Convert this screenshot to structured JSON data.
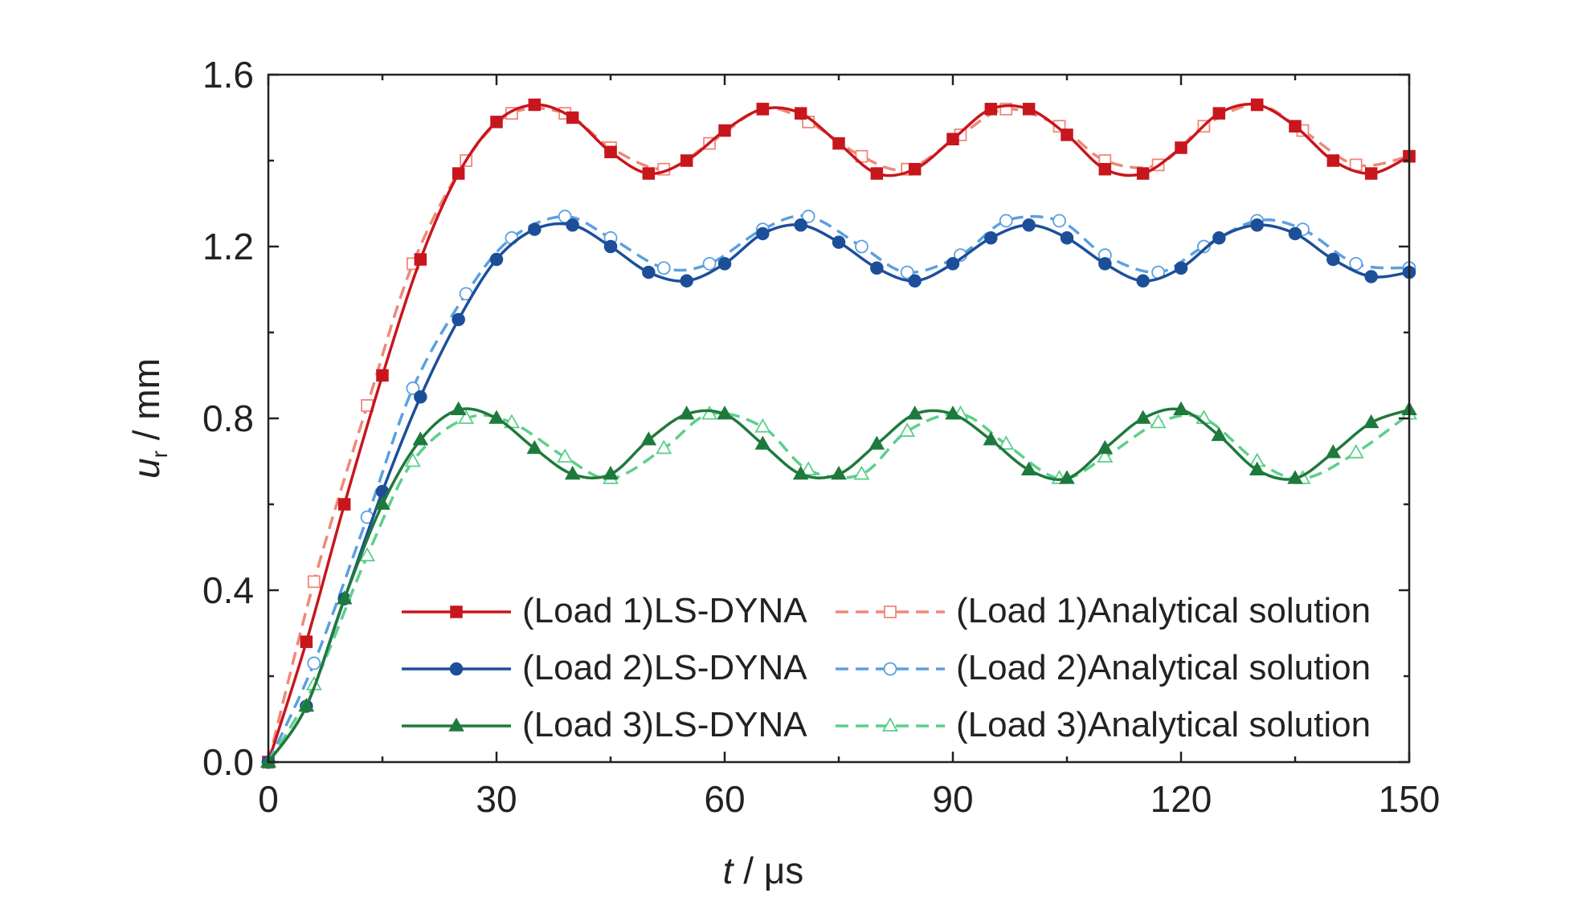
{
  "chart_data": {
    "type": "line",
    "xlabel_main": "t",
    "xlabel_unit": " / μs",
    "ylabel_main": "u",
    "ylabel_sub": "r",
    "ylabel_unit": " / mm",
    "xlim": [
      0,
      150
    ],
    "ylim": [
      0.0,
      1.6
    ],
    "xticks": [
      "0",
      "30",
      "60",
      "90",
      "120",
      "150"
    ],
    "yticks": [
      "0.0",
      "0.4",
      "0.8",
      "1.2",
      "1.6"
    ],
    "grid": false,
    "legend_position": "bottom-right",
    "series": [
      {
        "name": "(Load 1)LS-DYNA",
        "color": "#c8161d",
        "style": "solid",
        "marker": "square-filled",
        "x": [
          0,
          5,
          10,
          15,
          20,
          25,
          30,
          35,
          40,
          45,
          50,
          55,
          60,
          65,
          70,
          75,
          80,
          85,
          90,
          95,
          100,
          105,
          110,
          115,
          120,
          125,
          130,
          135,
          140,
          145,
          150
        ],
        "y": [
          0.0,
          0.28,
          0.6,
          0.9,
          1.17,
          1.37,
          1.49,
          1.53,
          1.5,
          1.42,
          1.37,
          1.4,
          1.47,
          1.52,
          1.51,
          1.44,
          1.37,
          1.38,
          1.45,
          1.52,
          1.52,
          1.46,
          1.38,
          1.37,
          1.43,
          1.51,
          1.53,
          1.48,
          1.4,
          1.37,
          1.41
        ]
      },
      {
        "name": "(Load 1)Analytical solution",
        "color": "#f08878",
        "style": "dashed",
        "marker": "square-open",
        "x": [
          0,
          6,
          13,
          19,
          26,
          32,
          39,
          45,
          52,
          58,
          65,
          71,
          78,
          84,
          91,
          97,
          104,
          110,
          117,
          123,
          130,
          136,
          143,
          150
        ],
        "y": [
          0.0,
          0.42,
          0.83,
          1.16,
          1.4,
          1.51,
          1.51,
          1.43,
          1.38,
          1.44,
          1.52,
          1.49,
          1.41,
          1.38,
          1.46,
          1.52,
          1.48,
          1.4,
          1.39,
          1.48,
          1.53,
          1.47,
          1.39,
          1.41
        ]
      },
      {
        "name": "(Load 2)LS-DYNA",
        "color": "#1d4f99",
        "style": "solid",
        "marker": "circle-filled",
        "x": [
          0,
          5,
          10,
          15,
          20,
          25,
          30,
          35,
          40,
          45,
          50,
          55,
          60,
          65,
          70,
          75,
          80,
          85,
          90,
          95,
          100,
          105,
          110,
          115,
          120,
          125,
          130,
          135,
          140,
          145,
          150
        ],
        "y": [
          0.0,
          0.13,
          0.38,
          0.63,
          0.85,
          1.03,
          1.17,
          1.24,
          1.25,
          1.2,
          1.14,
          1.12,
          1.16,
          1.23,
          1.25,
          1.21,
          1.15,
          1.12,
          1.16,
          1.22,
          1.25,
          1.22,
          1.16,
          1.12,
          1.15,
          1.22,
          1.25,
          1.23,
          1.17,
          1.13,
          1.14
        ]
      },
      {
        "name": "(Load 2)Analytical solution",
        "color": "#5aa0e0",
        "style": "dashed",
        "marker": "circle-open",
        "x": [
          0,
          6,
          13,
          19,
          26,
          32,
          39,
          45,
          52,
          58,
          65,
          71,
          78,
          84,
          91,
          97,
          104,
          110,
          117,
          123,
          130,
          136,
          143,
          150
        ],
        "y": [
          0.0,
          0.23,
          0.57,
          0.87,
          1.09,
          1.22,
          1.27,
          1.22,
          1.15,
          1.16,
          1.24,
          1.27,
          1.2,
          1.14,
          1.18,
          1.26,
          1.26,
          1.18,
          1.14,
          1.2,
          1.26,
          1.24,
          1.16,
          1.15
        ]
      },
      {
        "name": "(Load 3)LS-DYNA",
        "color": "#1e7a3c",
        "style": "solid",
        "marker": "triangle-filled",
        "x": [
          0,
          5,
          10,
          15,
          20,
          25,
          30,
          35,
          40,
          45,
          50,
          55,
          60,
          65,
          70,
          75,
          80,
          85,
          90,
          95,
          100,
          105,
          110,
          115,
          120,
          125,
          130,
          135,
          140,
          145,
          150
        ],
        "y": [
          0.0,
          0.13,
          0.38,
          0.6,
          0.75,
          0.82,
          0.8,
          0.73,
          0.67,
          0.67,
          0.75,
          0.81,
          0.81,
          0.74,
          0.67,
          0.67,
          0.74,
          0.81,
          0.81,
          0.75,
          0.68,
          0.66,
          0.73,
          0.8,
          0.82,
          0.76,
          0.68,
          0.66,
          0.72,
          0.79,
          0.82
        ]
      },
      {
        "name": "(Load 3)Analytical solution",
        "color": "#5ccf8a",
        "style": "dashed",
        "marker": "triangle-open",
        "x": [
          0,
          6,
          13,
          19,
          26,
          32,
          39,
          45,
          52,
          58,
          65,
          71,
          78,
          84,
          91,
          97,
          104,
          110,
          117,
          123,
          130,
          136,
          143,
          150
        ],
        "y": [
          0.0,
          0.18,
          0.48,
          0.7,
          0.8,
          0.79,
          0.71,
          0.66,
          0.73,
          0.81,
          0.78,
          0.68,
          0.67,
          0.77,
          0.81,
          0.74,
          0.66,
          0.71,
          0.79,
          0.8,
          0.7,
          0.66,
          0.72,
          0.81
        ]
      }
    ]
  }
}
